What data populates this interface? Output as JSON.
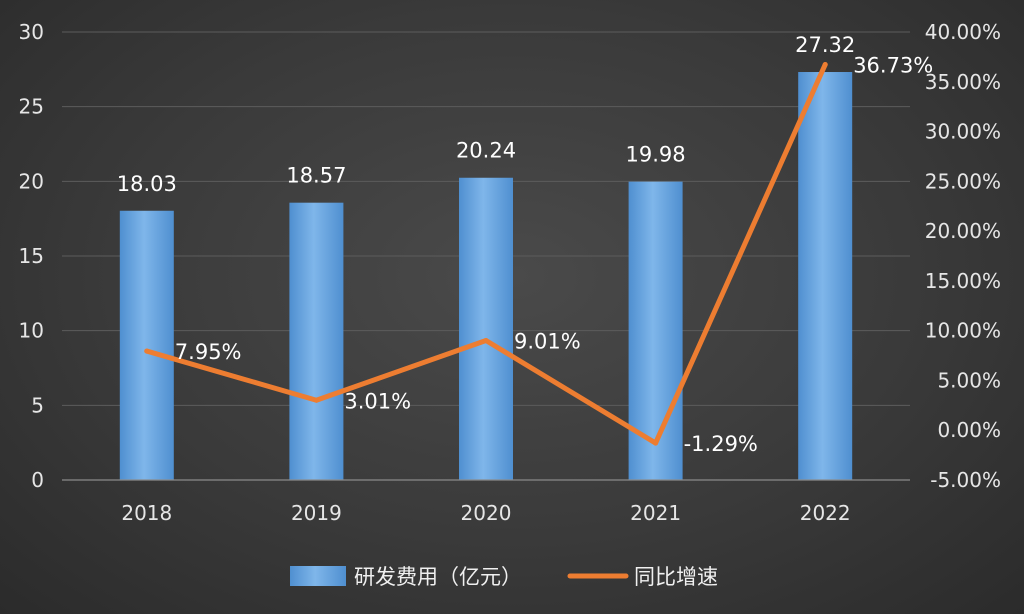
{
  "chart_data": {
    "type": "bar+line",
    "categories": [
      "2018",
      "2019",
      "2020",
      "2021",
      "2022"
    ],
    "series": [
      {
        "name": "研发费用（亿元）",
        "type": "bar",
        "axis": "left",
        "values": [
          18.03,
          18.57,
          20.24,
          19.98,
          27.32
        ],
        "labels": [
          "18.03",
          "18.57",
          "20.24",
          "19.98",
          "27.32"
        ]
      },
      {
        "name": "同比增速",
        "type": "line",
        "axis": "right",
        "values": [
          7.95,
          3.01,
          9.01,
          -1.29,
          36.73
        ],
        "labels": [
          "7.95%",
          "3.01%",
          "9.01%",
          "-1.29%",
          "36.73%"
        ]
      }
    ],
    "y_left": {
      "min": 0,
      "max": 30,
      "step": 5,
      "ticks": [
        "0",
        "5",
        "10",
        "15",
        "20",
        "25",
        "30"
      ]
    },
    "y_right": {
      "min": -5,
      "max": 40,
      "step": 5,
      "ticks": [
        "-5.00%",
        "0.00%",
        "5.00%",
        "10.00%",
        "15.00%",
        "20.00%",
        "25.00%",
        "30.00%",
        "35.00%",
        "40.00%"
      ]
    },
    "grid": true,
    "legend_position": "bottom",
    "colors": {
      "bar": "#5b9bd5",
      "line": "#ed7d31",
      "background": "#3a3a3a",
      "text": "#e6e6e6"
    }
  }
}
